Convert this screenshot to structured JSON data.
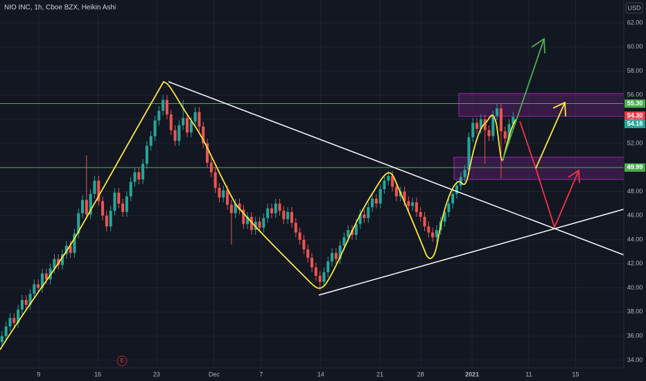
{
  "chart_data": {
    "type": "candlestick",
    "title": "NIO INC, 1h, Cboe BZX, Heikin Ashi",
    "currency": "USD",
    "event_marker": "E",
    "up_color": "#26a69a",
    "down_color": "#ef5350",
    "grid": true,
    "xlim": [
      -0.5,
      154.5
    ],
    "ylim": [
      33.42,
      63.9
    ],
    "xticks": [
      {
        "value": 9.1,
        "label": "9"
      },
      {
        "value": 23.8,
        "label": "16"
      },
      {
        "value": 38.4,
        "label": "23"
      },
      {
        "value": 52.7,
        "label": "Dec"
      },
      {
        "value": 64.4,
        "label": "7"
      },
      {
        "value": 79.2,
        "label": "14"
      },
      {
        "value": 93.9,
        "label": "21"
      },
      {
        "value": 104.0,
        "label": "28"
      },
      {
        "value": 116.8,
        "label": "2021"
      },
      {
        "value": 130.9,
        "label": "11"
      },
      {
        "value": 142.5,
        "label": "15"
      }
    ],
    "yticks": [
      {
        "value": 34,
        "label": "34.00"
      },
      {
        "value": 36,
        "label": "36.00"
      },
      {
        "value": 38,
        "label": "38.00"
      },
      {
        "value": 40,
        "label": "40.00"
      },
      {
        "value": 42,
        "label": "42.00"
      },
      {
        "value": 44,
        "label": "44.00"
      },
      {
        "value": 46,
        "label": "46.00"
      },
      {
        "value": 48,
        "label": "48.00"
      },
      {
        "value": 50,
        "label": "50.00"
      },
      {
        "value": 52,
        "label": "52.00"
      },
      {
        "value": 54,
        "label": "54.00"
      },
      {
        "value": 56,
        "label": "56.00"
      },
      {
        "value": 58,
        "label": "58.00"
      },
      {
        "value": 60,
        "label": "60.00"
      },
      {
        "value": 62,
        "label": "62.00"
      }
    ],
    "price_lines": [
      {
        "value": 55.3,
        "label": "55.30",
        "color": "#4caf50"
      },
      {
        "value": 49.99,
        "label": "49.99",
        "color": "#4caf50"
      }
    ],
    "high_tag": {
      "value": 54.3,
      "label": "54.30",
      "color": "#f23645"
    },
    "last_price": {
      "value": 54.18,
      "label": "54.18",
      "color": "#26a69a"
    },
    "x": [
      0,
      1,
      2,
      3,
      4,
      5,
      6,
      7,
      8,
      9,
      10,
      11,
      12,
      13,
      14,
      15,
      16,
      17,
      18,
      19,
      20,
      21,
      22,
      23,
      24,
      25,
      26,
      27,
      28,
      29,
      30,
      31,
      32,
      33,
      34,
      35,
      36,
      37,
      38,
      39,
      40,
      41,
      42,
      43,
      44,
      45,
      46,
      47,
      48,
      49,
      50,
      51,
      52,
      53,
      54,
      55,
      56,
      57,
      58,
      59,
      60,
      61,
      62,
      63,
      64,
      65,
      66,
      67,
      68,
      69,
      70,
      71,
      72,
      73,
      74,
      75,
      76,
      77,
      78,
      79,
      80,
      81,
      82,
      83,
      84,
      85,
      86,
      87,
      88,
      89,
      90,
      91,
      92,
      93,
      94,
      95,
      96,
      97,
      98,
      99,
      100,
      101,
      102,
      103,
      104,
      105,
      106,
      107,
      108,
      109,
      110,
      111,
      112,
      113,
      114,
      115,
      116,
      117,
      118,
      119,
      120,
      121,
      122,
      123,
      124,
      125,
      126,
      127
    ],
    "open": [
      35.5,
      36.0,
      36.8,
      37.5,
      37.1,
      38.2,
      39.0,
      38.6,
      39.5,
      40.3,
      40.0,
      41.2,
      40.7,
      41.6,
      42.4,
      41.9,
      42.8,
      43.5,
      42.9,
      44.5,
      46.2,
      47.3,
      46.1,
      47.8,
      48.9,
      47.2,
      46.0,
      45.1,
      46.4,
      47.9,
      47.0,
      46.3,
      47.6,
      48.8,
      49.6,
      49.0,
      50.3,
      51.8,
      52.6,
      53.9,
      54.7,
      55.6,
      54.4,
      53.1,
      52.2,
      53.5,
      54.1,
      52.9,
      53.8,
      54.6,
      53.4,
      52.0,
      50.4,
      49.6,
      48.3,
      47.5,
      48.1,
      46.9,
      46.2,
      47.0,
      46.5,
      45.3,
      45.9,
      44.8,
      45.5,
      45.0,
      45.8,
      46.6,
      46.2,
      47.0,
      46.4,
      45.7,
      46.3,
      45.4,
      44.6,
      44.0,
      43.2,
      42.5,
      41.7,
      41.0,
      40.5,
      41.3,
      42.2,
      42.9,
      42.4,
      43.5,
      44.2,
      44.8,
      44.4,
      45.3,
      46.1,
      45.8,
      46.7,
      47.4,
      47.0,
      48.2,
      48.9,
      49.3,
      48.4,
      47.6,
      48.0,
      47.2,
      46.8,
      47.1,
      46.3,
      45.9,
      45.1,
      44.6,
      44.2,
      44.8,
      45.5,
      46.3,
      47.0,
      47.8,
      48.5,
      49.2,
      49.8,
      52.5,
      53.7,
      53.2,
      54.0,
      53.1,
      52.6,
      54.3,
      54.9,
      53.0,
      52.4,
      53.6
    ],
    "high": [
      36.4,
      37.2,
      37.9,
      37.9,
      38.6,
      39.4,
      39.4,
      39.9,
      40.7,
      40.7,
      41.6,
      41.6,
      42.0,
      42.8,
      42.8,
      43.2,
      43.9,
      43.9,
      44.9,
      46.6,
      47.7,
      51.0,
      48.2,
      49.3,
      49.3,
      47.6,
      46.4,
      46.8,
      48.3,
      48.3,
      47.4,
      48.0,
      49.2,
      50.0,
      50.0,
      50.7,
      52.2,
      53.0,
      54.3,
      55.1,
      56.0,
      56.0,
      54.8,
      53.5,
      53.9,
      55.6,
      54.5,
      54.2,
      55.0,
      55.0,
      53.8,
      52.4,
      50.8,
      50.0,
      48.7,
      48.5,
      48.5,
      47.3,
      47.4,
      47.4,
      46.9,
      46.3,
      46.3,
      45.9,
      45.9,
      46.2,
      47.0,
      47.0,
      47.4,
      47.4,
      46.8,
      46.7,
      46.7,
      45.8,
      45.0,
      44.4,
      43.6,
      42.9,
      42.1,
      41.4,
      41.7,
      42.6,
      43.3,
      43.3,
      43.9,
      44.6,
      45.2,
      45.2,
      45.7,
      46.5,
      46.5,
      47.1,
      47.8,
      47.8,
      48.6,
      49.3,
      49.7,
      49.7,
      48.8,
      48.4,
      48.4,
      47.6,
      47.5,
      47.5,
      46.7,
      46.3,
      45.5,
      45.0,
      45.2,
      45.9,
      46.7,
      47.4,
      48.2,
      48.9,
      49.6,
      50.2,
      52.9,
      54.1,
      54.1,
      54.4,
      54.4,
      53.5,
      54.7,
      55.3,
      55.3,
      53.4,
      54.0,
      54.6
    ],
    "low": [
      35.1,
      35.6,
      36.4,
      36.7,
      36.7,
      37.8,
      38.2,
      38.2,
      39.1,
      39.6,
      39.6,
      40.3,
      40.3,
      41.2,
      41.5,
      41.5,
      42.4,
      42.5,
      42.5,
      44.1,
      45.8,
      45.7,
      45.7,
      47.4,
      46.8,
      45.6,
      44.7,
      44.7,
      46.0,
      46.6,
      45.9,
      45.9,
      47.2,
      48.4,
      48.6,
      48.6,
      49.9,
      51.4,
      52.2,
      53.5,
      54.3,
      54.0,
      52.7,
      51.8,
      51.8,
      53.1,
      52.5,
      52.5,
      53.4,
      53.0,
      51.6,
      50.0,
      49.2,
      47.9,
      47.1,
      47.1,
      46.5,
      43.6,
      45.8,
      46.1,
      44.9,
      44.9,
      44.4,
      44.4,
      44.6,
      44.6,
      45.4,
      45.8,
      45.8,
      46.0,
      45.3,
      45.3,
      45.0,
      44.2,
      43.6,
      42.8,
      42.1,
      41.3,
      40.6,
      39.8,
      40.1,
      40.9,
      41.8,
      42.0,
      42.0,
      43.1,
      43.8,
      44.0,
      44.0,
      44.9,
      45.4,
      45.4,
      46.3,
      46.6,
      46.6,
      47.8,
      48.5,
      48.0,
      47.2,
      47.2,
      46.8,
      46.4,
      46.4,
      45.9,
      45.5,
      44.7,
      44.2,
      43.8,
      43.8,
      44.4,
      45.1,
      45.9,
      46.6,
      47.4,
      48.1,
      48.8,
      49.4,
      52.1,
      52.8,
      52.8,
      50.3,
      52.2,
      52.2,
      53.9,
      49.1,
      52.0,
      52.0,
      53.2
    ],
    "close": [
      36.0,
      36.8,
      37.5,
      37.1,
      38.2,
      39.0,
      38.6,
      39.5,
      40.3,
      40.0,
      41.2,
      40.7,
      41.6,
      42.4,
      41.9,
      42.8,
      43.5,
      42.9,
      44.5,
      46.2,
      47.3,
      46.1,
      47.8,
      48.9,
      47.2,
      46.0,
      45.1,
      46.4,
      47.9,
      47.0,
      46.3,
      47.6,
      48.8,
      49.6,
      49.0,
      50.3,
      51.8,
      52.6,
      53.9,
      54.7,
      55.6,
      54.4,
      53.1,
      52.2,
      53.5,
      54.1,
      52.9,
      53.8,
      54.6,
      53.4,
      52.0,
      50.4,
      49.6,
      48.3,
      47.5,
      48.1,
      46.9,
      46.2,
      47.0,
      46.5,
      45.3,
      45.9,
      44.8,
      45.5,
      45.0,
      45.8,
      46.6,
      46.2,
      47.0,
      46.4,
      45.7,
      46.3,
      45.4,
      44.6,
      44.0,
      43.2,
      42.5,
      41.7,
      41.0,
      40.5,
      41.3,
      42.2,
      42.9,
      42.4,
      43.5,
      44.2,
      44.8,
      44.4,
      45.3,
      46.1,
      45.8,
      46.7,
      47.4,
      47.0,
      48.2,
      48.9,
      49.3,
      48.4,
      47.6,
      48.0,
      47.2,
      46.8,
      47.1,
      46.3,
      45.9,
      45.1,
      44.6,
      44.2,
      44.8,
      45.5,
      46.3,
      47.0,
      47.8,
      48.5,
      49.2,
      49.8,
      52.5,
      53.7,
      53.2,
      54.0,
      53.1,
      52.6,
      54.3,
      54.9,
      53.0,
      52.4,
      53.6,
      54.18
    ]
  }
}
